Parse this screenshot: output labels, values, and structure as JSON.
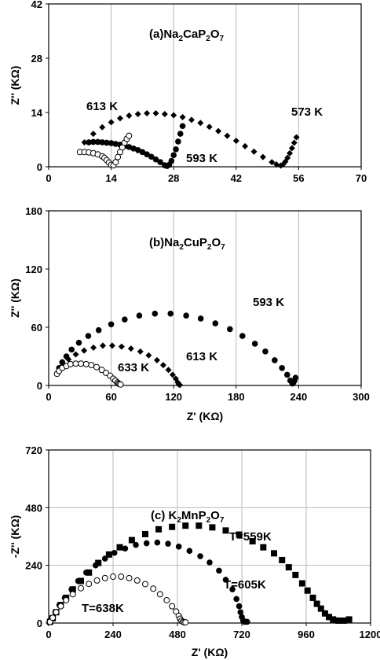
{
  "chart_data": [
    {
      "type": "scatter",
      "title": "(a)Na2CaP2O7",
      "title_parts": {
        "prefix": "(a)Na",
        "sub1": "2",
        "mid": "CaP",
        "sub2": "2",
        "mid2": "O",
        "sub3": "7"
      },
      "xlabel": "",
      "ylabel": "Z'' (KΩ)",
      "xlim": [
        0,
        70
      ],
      "ylim": [
        0,
        42
      ],
      "xticks": [
        0,
        14,
        28,
        42,
        56,
        70
      ],
      "yticks": [
        0,
        14,
        28,
        42
      ],
      "xtick_labels": [
        "0",
        "14",
        "28",
        "42",
        "56",
        "70"
      ],
      "ytick_labels": [
        "0",
        "14",
        "28",
        "42"
      ],
      "grid": "vertical",
      "annotations": [
        "613 K",
        "573 K",
        "593 K"
      ],
      "series": [
        {
          "name": "573 K",
          "marker": "diamond",
          "x": [
            8,
            10,
            12,
            14,
            16,
            18,
            20,
            22,
            24,
            26,
            28,
            30,
            32,
            34,
            36,
            38,
            40,
            42,
            44,
            46,
            48,
            50,
            51,
            52,
            52.5,
            53,
            53.5,
            54,
            54.5,
            55,
            55.5
          ],
          "y": [
            6.3,
            8.5,
            10.2,
            11.5,
            12.5,
            13.2,
            13.6,
            13.8,
            13.8,
            13.6,
            13.3,
            12.8,
            12.1,
            11.3,
            10.3,
            9.2,
            8,
            6.7,
            5.3,
            3.9,
            2.5,
            1.2,
            0.6,
            0.3,
            0.6,
            1.3,
            2.3,
            3.5,
            4.8,
            6.2,
            7.6
          ]
        },
        {
          "name": "593 K",
          "marker": "circle-filled",
          "x": [
            9,
            10,
            11,
            12,
            13,
            14,
            15,
            16,
            17,
            18,
            19,
            20,
            21,
            22,
            23,
            24,
            25,
            26,
            26.5,
            27,
            27.5,
            28,
            28.5,
            29,
            29.5,
            30
          ],
          "y": [
            6.3,
            6.4,
            6.4,
            6.3,
            6.2,
            6.1,
            5.9,
            5.7,
            5.4,
            5.1,
            4.7,
            4.3,
            3.8,
            3.2,
            2.6,
            1.9,
            1.2,
            0.4,
            0.2,
            0.5,
            1.5,
            3,
            4.5,
            6.5,
            8.5,
            10.5
          ]
        },
        {
          "name": "613 K",
          "marker": "circle-open",
          "x": [
            7,
            8,
            9,
            10,
            11,
            12,
            12.5,
            13,
            13.5,
            14,
            14.5,
            15,
            15.5,
            16,
            16.5,
            17,
            17.5,
            18
          ],
          "y": [
            3.8,
            3.8,
            3.7,
            3.5,
            3.2,
            2.7,
            2.3,
            1.7,
            1.1,
            0.5,
            0.4,
            1.2,
            2.5,
            3.8,
            5,
            6.2,
            7.2,
            8
          ]
        }
      ]
    },
    {
      "type": "scatter",
      "title": "(b)Na2CuP2O7",
      "title_parts": {
        "prefix": "(b)Na",
        "sub1": "2",
        "mid": "CuP",
        "sub2": "2",
        "mid2": "O",
        "sub3": "7"
      },
      "xlabel": "Z' (KΩ)",
      "ylabel": "Z'' (KΩ)",
      "xlim": [
        0,
        300
      ],
      "ylim": [
        0,
        180
      ],
      "xticks": [
        0,
        60,
        120,
        180,
        240,
        300
      ],
      "yticks": [
        0,
        60,
        120,
        180
      ],
      "xtick_labels": [
        "0",
        "60",
        "120",
        "180",
        "240",
        "300"
      ],
      "ytick_labels": [
        "0",
        "60",
        "120",
        "180"
      ],
      "grid": "vertical",
      "annotations": [
        "593 K",
        "613 K",
        "633 K"
      ],
      "series": [
        {
          "name": "593 K",
          "marker": "circle-filled",
          "x": [
            10,
            13,
            17,
            22,
            29,
            38,
            48,
            60,
            73,
            87,
            102,
            117,
            132,
            146,
            160,
            174,
            186,
            198,
            208,
            217,
            224,
            229,
            232,
            234,
            235,
            236,
            237
          ],
          "y": [
            18,
            24,
            30,
            37,
            44,
            51,
            57,
            63,
            68,
            72,
            74,
            74,
            72,
            69,
            64,
            58,
            51,
            43,
            35,
            26,
            18,
            11,
            5,
            2,
            3,
            5,
            8
          ]
        },
        {
          "name": "613 K",
          "marker": "diamond",
          "x": [
            10,
            14,
            19,
            26,
            34,
            43,
            52,
            61,
            70,
            79,
            88,
            96,
            104,
            110,
            115,
            119,
            122,
            124,
            125,
            126
          ],
          "y": [
            15,
            21,
            27,
            32,
            36,
            39,
            41,
            41,
            40,
            38,
            35,
            31,
            26,
            21,
            16,
            11,
            7,
            3,
            1,
            0.5
          ]
        },
        {
          "name": "633 K",
          "marker": "circle-open",
          "x": [
            8,
            10,
            13,
            17,
            21,
            26,
            31,
            36,
            41,
            46,
            51,
            55,
            59,
            62,
            64,
            66,
            67,
            68,
            69
          ],
          "y": [
            12,
            15,
            18,
            20,
            22,
            22.5,
            22.5,
            22,
            21,
            19,
            16,
            13,
            10,
            7,
            5,
            3,
            2,
            1.5,
            1
          ]
        }
      ]
    },
    {
      "type": "scatter",
      "title": "(c) K2MnP2O7",
      "title_parts": {
        "prefix": "(c) K",
        "sub1": "2",
        "mid": "MnP",
        "sub2": "2",
        "mid2": "O",
        "sub3": "7"
      },
      "xlabel": "Z' (KΩ)",
      "ylabel": "-Z'' (KΩ)",
      "xlim": [
        0,
        1200
      ],
      "ylim": [
        0,
        720
      ],
      "xticks": [
        0,
        240,
        480,
        720,
        960,
        1200
      ],
      "yticks": [
        0,
        240,
        480,
        720
      ],
      "xtick_labels": [
        "0",
        "240",
        "480",
        "720",
        "960",
        "1200"
      ],
      "ytick_labels": [
        "0",
        "240",
        "480",
        "720"
      ],
      "grid": "both",
      "annotations": [
        "T=559K",
        "T=605K",
        "T=638K"
      ],
      "series": [
        {
          "name": "T=559K",
          "marker": "square",
          "x": [
            5,
            15,
            28,
            45,
            65,
            90,
            120,
            150,
            185,
            225,
            265,
            310,
            360,
            410,
            460,
            510,
            560,
            610,
            660,
            710,
            760,
            800,
            840,
            870,
            895,
            920,
            945,
            965,
            985,
            1000,
            1015,
            1030,
            1045,
            1060,
            1080,
            1100,
            1120
          ],
          "y": [
            5,
            20,
            45,
            75,
            105,
            140,
            175,
            210,
            250,
            285,
            315,
            345,
            370,
            390,
            400,
            405,
            405,
            398,
            385,
            368,
            340,
            315,
            290,
            262,
            232,
            200,
            165,
            135,
            105,
            80,
            60,
            40,
            25,
            15,
            10,
            10,
            15
          ]
        },
        {
          "name": "T=605K",
          "marker": "circle-filled",
          "x": [
            3,
            12,
            25,
            40,
            60,
            85,
            110,
            140,
            175,
            210,
            245,
            285,
            325,
            365,
            405,
            445,
            485,
            525,
            565,
            600,
            635,
            660,
            685,
            700,
            710,
            715,
            720,
            725,
            730,
            735,
            740
          ],
          "y": [
            5,
            20,
            45,
            75,
            105,
            140,
            175,
            210,
            240,
            268,
            292,
            310,
            325,
            332,
            335,
            330,
            318,
            300,
            278,
            252,
            218,
            180,
            140,
            100,
            70,
            45,
            25,
            10,
            5,
            5,
            5
          ]
        },
        {
          "name": "T=638K",
          "marker": "circle-open",
          "x": [
            5,
            15,
            28,
            45,
            65,
            90,
            120,
            150,
            180,
            210,
            240,
            270,
            300,
            330,
            360,
            390,
            415,
            440,
            460,
            475,
            485,
            490,
            495,
            500,
            505,
            510
          ],
          "y": [
            5,
            22,
            45,
            70,
            95,
            120,
            145,
            163,
            177,
            187,
            193,
            193,
            187,
            177,
            162,
            143,
            120,
            95,
            70,
            48,
            30,
            18,
            10,
            5,
            3,
            3
          ]
        }
      ]
    }
  ]
}
